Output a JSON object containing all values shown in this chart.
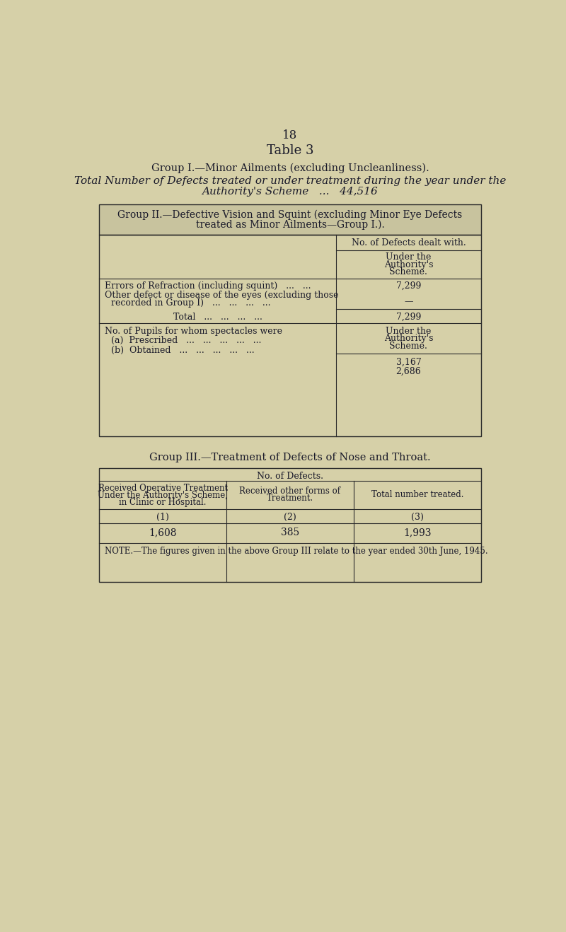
{
  "bg_color": "#d6d0a8",
  "page_number": "18",
  "table3_title": "Table 3",
  "group1_title": "Group I.—Minor Ailments (excluding Uncleanliness).",
  "group1_line1": "Total Number of Defects treated or under treatment during the year under the",
  "group1_line2": "Authority's Scheme   ...   44,516",
  "group2_header_line1": "Group II.—Defective Vision and Squint (excluding Minor Eye Defects",
  "group2_header_line2": "treated as Minor Ailments—Group I.).",
  "group2_col_header1": "No. of Defects dealt with.",
  "group2_under_auth1": "Under the",
  "group2_under_auth2": "Authority's",
  "group2_under_auth3": "Scheme.",
  "group2_row1_label1": "Errors of Refraction (including squint)   ...   ...",
  "group2_row1_val": "7,299",
  "group2_row2_label1": "Other defect or disease of the eyes (excluding those",
  "group2_row2_label2": "recorded in Group I)   ...   ...   ...   ...",
  "group2_row2_val": "—",
  "group2_total_label": "Total   ...   ...   ...   ...",
  "group2_total_val": "7,299",
  "group2_spectacles_header": "No. of Pupils for whom spectacles were",
  "group2_prescribed_label": "(a)  Prescribed   ...   ...   ...   ...   ...",
  "group2_prescribed_val": "3,167",
  "group2_obtained_label": "(b)  Obtained   ...   ...   ...   ...   ...",
  "group2_obtained_val": "2,686",
  "group3_title": "Group III.—Treatment of Defects of Nose and Throat.",
  "group3_col_header": "No. of Defects.",
  "group3_col1_header1": "Received Operative Treatment",
  "group3_col1_header2": "Under the Authority's Scheme,",
  "group3_col1_header3": "in Clinic or Hospital.",
  "group3_col2_header1": "Received other forms of",
  "group3_col2_header2": "Treatment.",
  "group3_col3_header": "Total number treated.",
  "group3_col1_num": "(1)",
  "group3_col2_num": "(2)",
  "group3_col3_num": "(3)",
  "group3_val1": "1,608",
  "group3_val2": "385",
  "group3_val3": "1,993",
  "group3_note": "NOTE.—The figures given in the above Group III relate to the year ended 30th June, 1945.",
  "text_color": "#1a1a2a",
  "border_color": "#2a2a2a",
  "table_header_bg": "#c8c39e"
}
